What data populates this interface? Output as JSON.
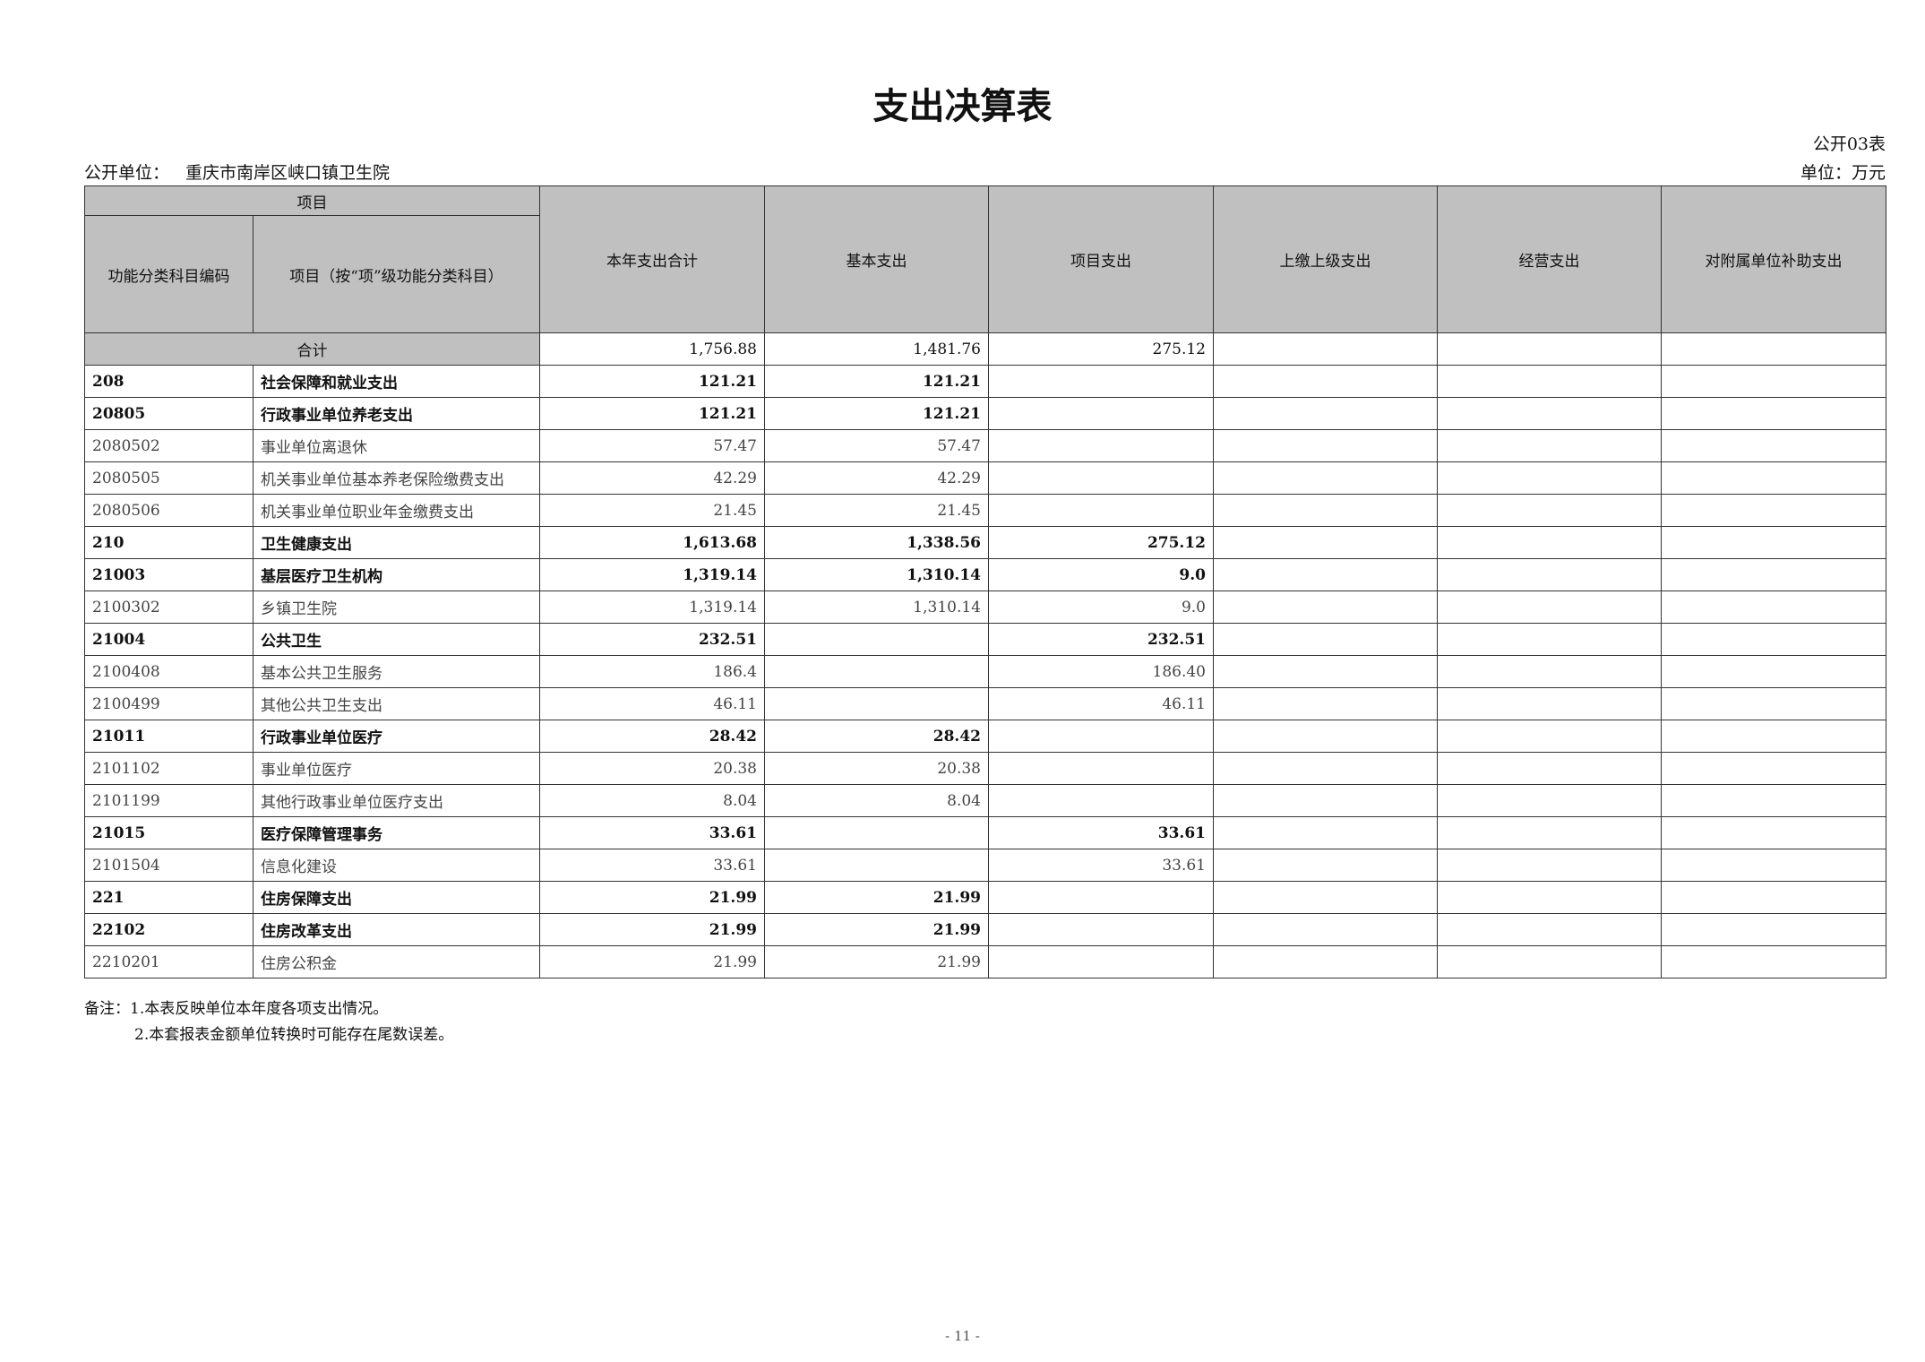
{
  "title": "支出决算表",
  "form_no": "公开03表",
  "unit_label": "公开单位：",
  "unit_name": "重庆市南岸区峡口镇卫生院",
  "currency_unit": "单位：万元",
  "header": {
    "group": "项目",
    "code": "功能分类科目编码",
    "name": "项目（按“项”级功能分类科目）",
    "columns": [
      "本年支出合计",
      "基本支出",
      "项目支出",
      "上缴上级支出",
      "经营支出",
      "对附属单位补助支出"
    ]
  },
  "total": {
    "label": "合计",
    "values": [
      "1,756.88",
      "1,481.76",
      "275.12",
      "",
      "",
      ""
    ]
  },
  "rows": [
    {
      "code": "208",
      "name": "社会保障和就业支出",
      "bold": true,
      "values": [
        "121.21",
        "121.21",
        "",
        "",
        "",
        ""
      ]
    },
    {
      "code": "20805",
      "name": "行政事业单位养老支出",
      "bold": true,
      "values": [
        "121.21",
        "121.21",
        "",
        "",
        "",
        ""
      ]
    },
    {
      "code": "2080502",
      "name": "事业单位离退休",
      "bold": false,
      "values": [
        "57.47",
        "57.47",
        "",
        "",
        "",
        ""
      ]
    },
    {
      "code": "2080505",
      "name": "机关事业单位基本养老保险缴费支出",
      "bold": false,
      "values": [
        "42.29",
        "42.29",
        "",
        "",
        "",
        ""
      ]
    },
    {
      "code": "2080506",
      "name": "机关事业单位职业年金缴费支出",
      "bold": false,
      "values": [
        "21.45",
        "21.45",
        "",
        "",
        "",
        ""
      ]
    },
    {
      "code": "210",
      "name": "卫生健康支出",
      "bold": true,
      "values": [
        "1,613.68",
        "1,338.56",
        "275.12",
        "",
        "",
        ""
      ]
    },
    {
      "code": "21003",
      "name": "基层医疗卫生机构",
      "bold": true,
      "values": [
        "1,319.14",
        "1,310.14",
        "9.0",
        "",
        "",
        ""
      ]
    },
    {
      "code": "2100302",
      "name": "乡镇卫生院",
      "bold": false,
      "values": [
        "1,319.14",
        "1,310.14",
        "9.0",
        "",
        "",
        ""
      ]
    },
    {
      "code": "21004",
      "name": "公共卫生",
      "bold": true,
      "values": [
        "232.51",
        "",
        "232.51",
        "",
        "",
        ""
      ]
    },
    {
      "code": "2100408",
      "name": "基本公共卫生服务",
      "bold": false,
      "values": [
        "186.4",
        "",
        "186.40",
        "",
        "",
        ""
      ]
    },
    {
      "code": "2100499",
      "name": "其他公共卫生支出",
      "bold": false,
      "values": [
        "46.11",
        "",
        "46.11",
        "",
        "",
        ""
      ]
    },
    {
      "code": "21011",
      "name": "行政事业单位医疗",
      "bold": true,
      "values": [
        "28.42",
        "28.42",
        "",
        "",
        "",
        ""
      ]
    },
    {
      "code": "2101102",
      "name": "事业单位医疗",
      "bold": false,
      "values": [
        "20.38",
        "20.38",
        "",
        "",
        "",
        ""
      ]
    },
    {
      "code": "2101199",
      "name": "其他行政事业单位医疗支出",
      "bold": false,
      "values": [
        "8.04",
        "8.04",
        "",
        "",
        "",
        ""
      ]
    },
    {
      "code": "21015",
      "name": "医疗保障管理事务",
      "bold": true,
      "values": [
        "33.61",
        "",
        "33.61",
        "",
        "",
        ""
      ]
    },
    {
      "code": "2101504",
      "name": "信息化建设",
      "bold": false,
      "values": [
        "33.61",
        "",
        "33.61",
        "",
        "",
        ""
      ]
    },
    {
      "code": "221",
      "name": "住房保障支出",
      "bold": true,
      "values": [
        "21.99",
        "21.99",
        "",
        "",
        "",
        ""
      ]
    },
    {
      "code": "22102",
      "name": "住房改革支出",
      "bold": true,
      "values": [
        "21.99",
        "21.99",
        "",
        "",
        "",
        ""
      ]
    },
    {
      "code": "2210201",
      "name": "住房公积金",
      "bold": false,
      "values": [
        "21.99",
        "21.99",
        "",
        "",
        "",
        ""
      ]
    }
  ],
  "notes": [
    "备注：1.本表反映单位本年度各项支出情况。",
    "2.本套报表金额单位转换时可能存在尾数误差。"
  ],
  "page_number": "- 11 -"
}
